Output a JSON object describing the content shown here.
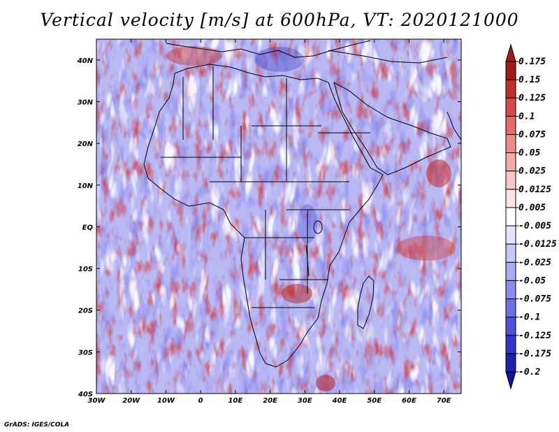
{
  "title": "Vertical velocity [m/s] at 600hPa, VT: 2020121000",
  "credit": "GrADS: IGES/COLA",
  "map": {
    "variable": "Vertical velocity",
    "units": "m/s",
    "level": "600hPa",
    "valid_time": "2020121000",
    "lon_range": [
      -30,
      75
    ],
    "lat_range": [
      -40,
      45
    ],
    "lon_ticks": [
      {
        "value": -30,
        "label": "30W"
      },
      {
        "value": -20,
        "label": "20W"
      },
      {
        "value": -10,
        "label": "10W"
      },
      {
        "value": 0,
        "label": "0"
      },
      {
        "value": 10,
        "label": "10E"
      },
      {
        "value": 20,
        "label": "20E"
      },
      {
        "value": 30,
        "label": "30E"
      },
      {
        "value": 40,
        "label": "40E"
      },
      {
        "value": 50,
        "label": "50E"
      },
      {
        "value": 60,
        "label": "60E"
      },
      {
        "value": 70,
        "label": "70E"
      }
    ],
    "lat_ticks": [
      {
        "value": 40,
        "label": "40N"
      },
      {
        "value": 30,
        "label": "30N"
      },
      {
        "value": 20,
        "label": "20N"
      },
      {
        "value": 10,
        "label": "10N"
      },
      {
        "value": 0,
        "label": "EQ"
      },
      {
        "value": -10,
        "label": "10S"
      },
      {
        "value": -20,
        "label": "20S"
      },
      {
        "value": -30,
        "label": "30S"
      },
      {
        "value": -40,
        "label": "40S"
      }
    ]
  },
  "colorbar": {
    "labels": [
      "0.175",
      "0.15",
      "0.125",
      "0.1",
      "0.075",
      "0.05",
      "0.025",
      "0.0125",
      "0.005",
      "-0.005",
      "-0.0125",
      "-0.025",
      "-0.05",
      "-0.075",
      "-0.1",
      "-0.125",
      "-0.175",
      "-0.2"
    ],
    "colors": [
      "#a11b1b",
      "#a11b1b",
      "#c52c2c",
      "#d84a4a",
      "#e56a6a",
      "#ee8c8c",
      "#f3aaaa",
      "#f8c8c8",
      "#fde4e4",
      "#ffffff",
      "#e4e4fc",
      "#c8c8f8",
      "#aaaaf2",
      "#8c8cec",
      "#6e6ee6",
      "#5050dc",
      "#3333cc",
      "#1e1eb0",
      "#13139a"
    ]
  }
}
